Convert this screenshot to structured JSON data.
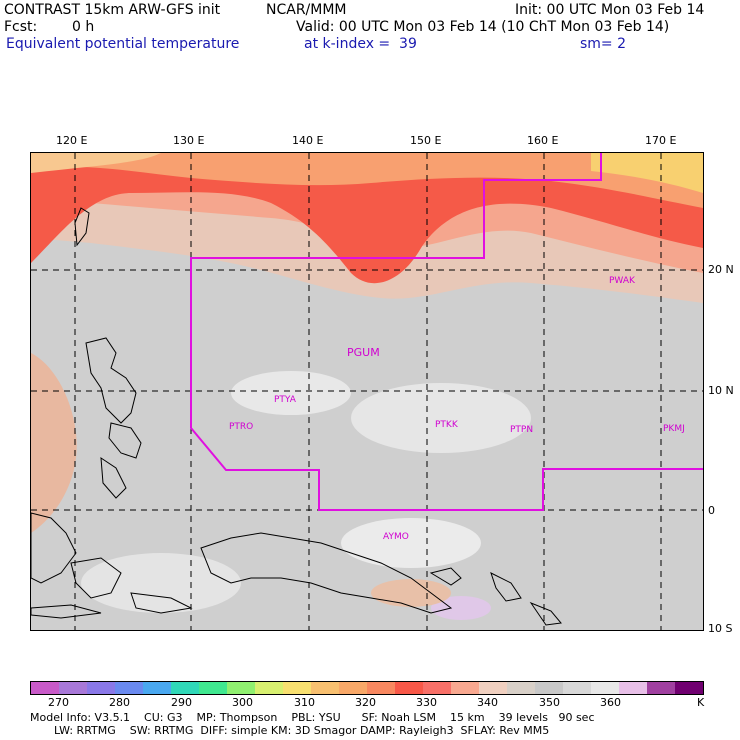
{
  "header": {
    "title_left": "CONTRAST 15km ARW-GFS init",
    "title_center": "NCAR/MMM",
    "init": "Init: 00 UTC Mon 03 Feb 14",
    "fcst_label": "Fcst:",
    "fcst_value": "0 h",
    "valid": "Valid: 00 UTC Mon 03 Feb 14 (10 ChT Mon 03 Feb 14)",
    "field": "Equivalent potential temperature",
    "level": "at k-index =  39",
    "smooth": "sm= 2"
  },
  "axes": {
    "lon_labels": [
      "120 E",
      "130 E",
      "140 E",
      "150 E",
      "160 E",
      "170 E"
    ],
    "lat_labels": [
      "20 N",
      "10 N",
      "0",
      "10 S"
    ]
  },
  "stations": [
    "PGUM",
    "PTYA",
    "PTRO",
    "PTKK",
    "PTPN",
    "PKMJ",
    "PWAK",
    "AYMO"
  ],
  "colorbar": {
    "colors": [
      "#c85ac8",
      "#a878d8",
      "#8a78e8",
      "#6a8af0",
      "#4aa8f0",
      "#30d8b8",
      "#40e890",
      "#90f070",
      "#d8f070",
      "#f8e070",
      "#f8c070",
      "#f8a868",
      "#f88860",
      "#f85848",
      "#f87068",
      "#f8a890",
      "#f0d0c0",
      "#d8d0c8",
      "#c8c8c8",
      "#d8d8d8",
      "#e8e8e8",
      "#e8c0e8",
      "#a040a0",
      "#700070"
    ],
    "tick_labels": [
      "270",
      "280",
      "290",
      "300",
      "310",
      "320",
      "330",
      "340",
      "350",
      "360",
      "K"
    ]
  },
  "model_info": {
    "line1": "Model Info: V3.5.1    CU: G3    MP: Thompson    PBL: YSU      SF: Noah LSM    15 km    39 levels   90 sec",
    "line2": "LW: RRTMG    SW: RRTMG  DIFF: simple KM: 3D Smagor DAMP: Rayleigh3  SFLAY: Rev MM5"
  }
}
